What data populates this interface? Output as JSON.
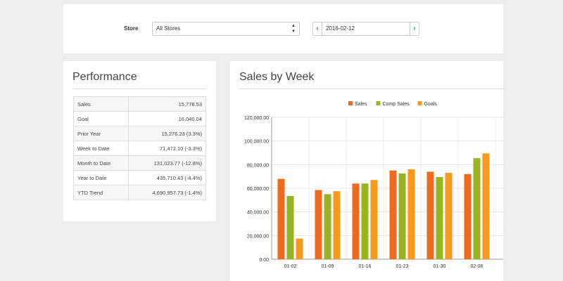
{
  "filter": {
    "store_label": "Store",
    "store_value": "All Stores",
    "date_value": "2016-02-12",
    "prev_icon": "chevron-left-icon",
    "next_icon": "chevron-right-icon"
  },
  "performance": {
    "title": "Performance",
    "rows": [
      {
        "label": "Sales",
        "value": "15,778.53"
      },
      {
        "label": "Goal",
        "value": "16,040.04"
      },
      {
        "label": "Prior Year",
        "value": "15,276.23 (3.3%)"
      },
      {
        "label": "Week to Date",
        "value": "71,472.10 (-3.3%)"
      },
      {
        "label": "Month to Date",
        "value": "131,023.77 (-12.8%)"
      },
      {
        "label": "Year to Date",
        "value": "435,710.43 (-4.4%)"
      },
      {
        "label": "YTD Trend",
        "value": "4,690,957.73 (-1.4%)"
      }
    ]
  },
  "sales_chart": {
    "title": "Sales by Week"
  },
  "chart_data": {
    "type": "bar",
    "categories": [
      "01-02",
      "01-09",
      "01-16",
      "01-23",
      "01-30",
      "02-06"
    ],
    "series": [
      {
        "name": "Sales",
        "color": "#ee6a1f",
        "values": [
          68000,
          58500,
          64000,
          75000,
          74000,
          72000
        ]
      },
      {
        "name": "Comp Sales",
        "color": "#99b421",
        "values": [
          53500,
          55000,
          64000,
          72500,
          69500,
          85500
        ]
      },
      {
        "name": "Goals",
        "color": "#f79a1c",
        "values": [
          17500,
          57500,
          67000,
          76000,
          73000,
          89500
        ]
      }
    ],
    "ylim": [
      0,
      120000
    ],
    "yticks": [
      "0.00",
      "20,000.00",
      "40,000.00",
      "60,000.00",
      "80,000.00",
      "100,000.00",
      "120,000.00"
    ],
    "grid": true,
    "legend": "top"
  }
}
